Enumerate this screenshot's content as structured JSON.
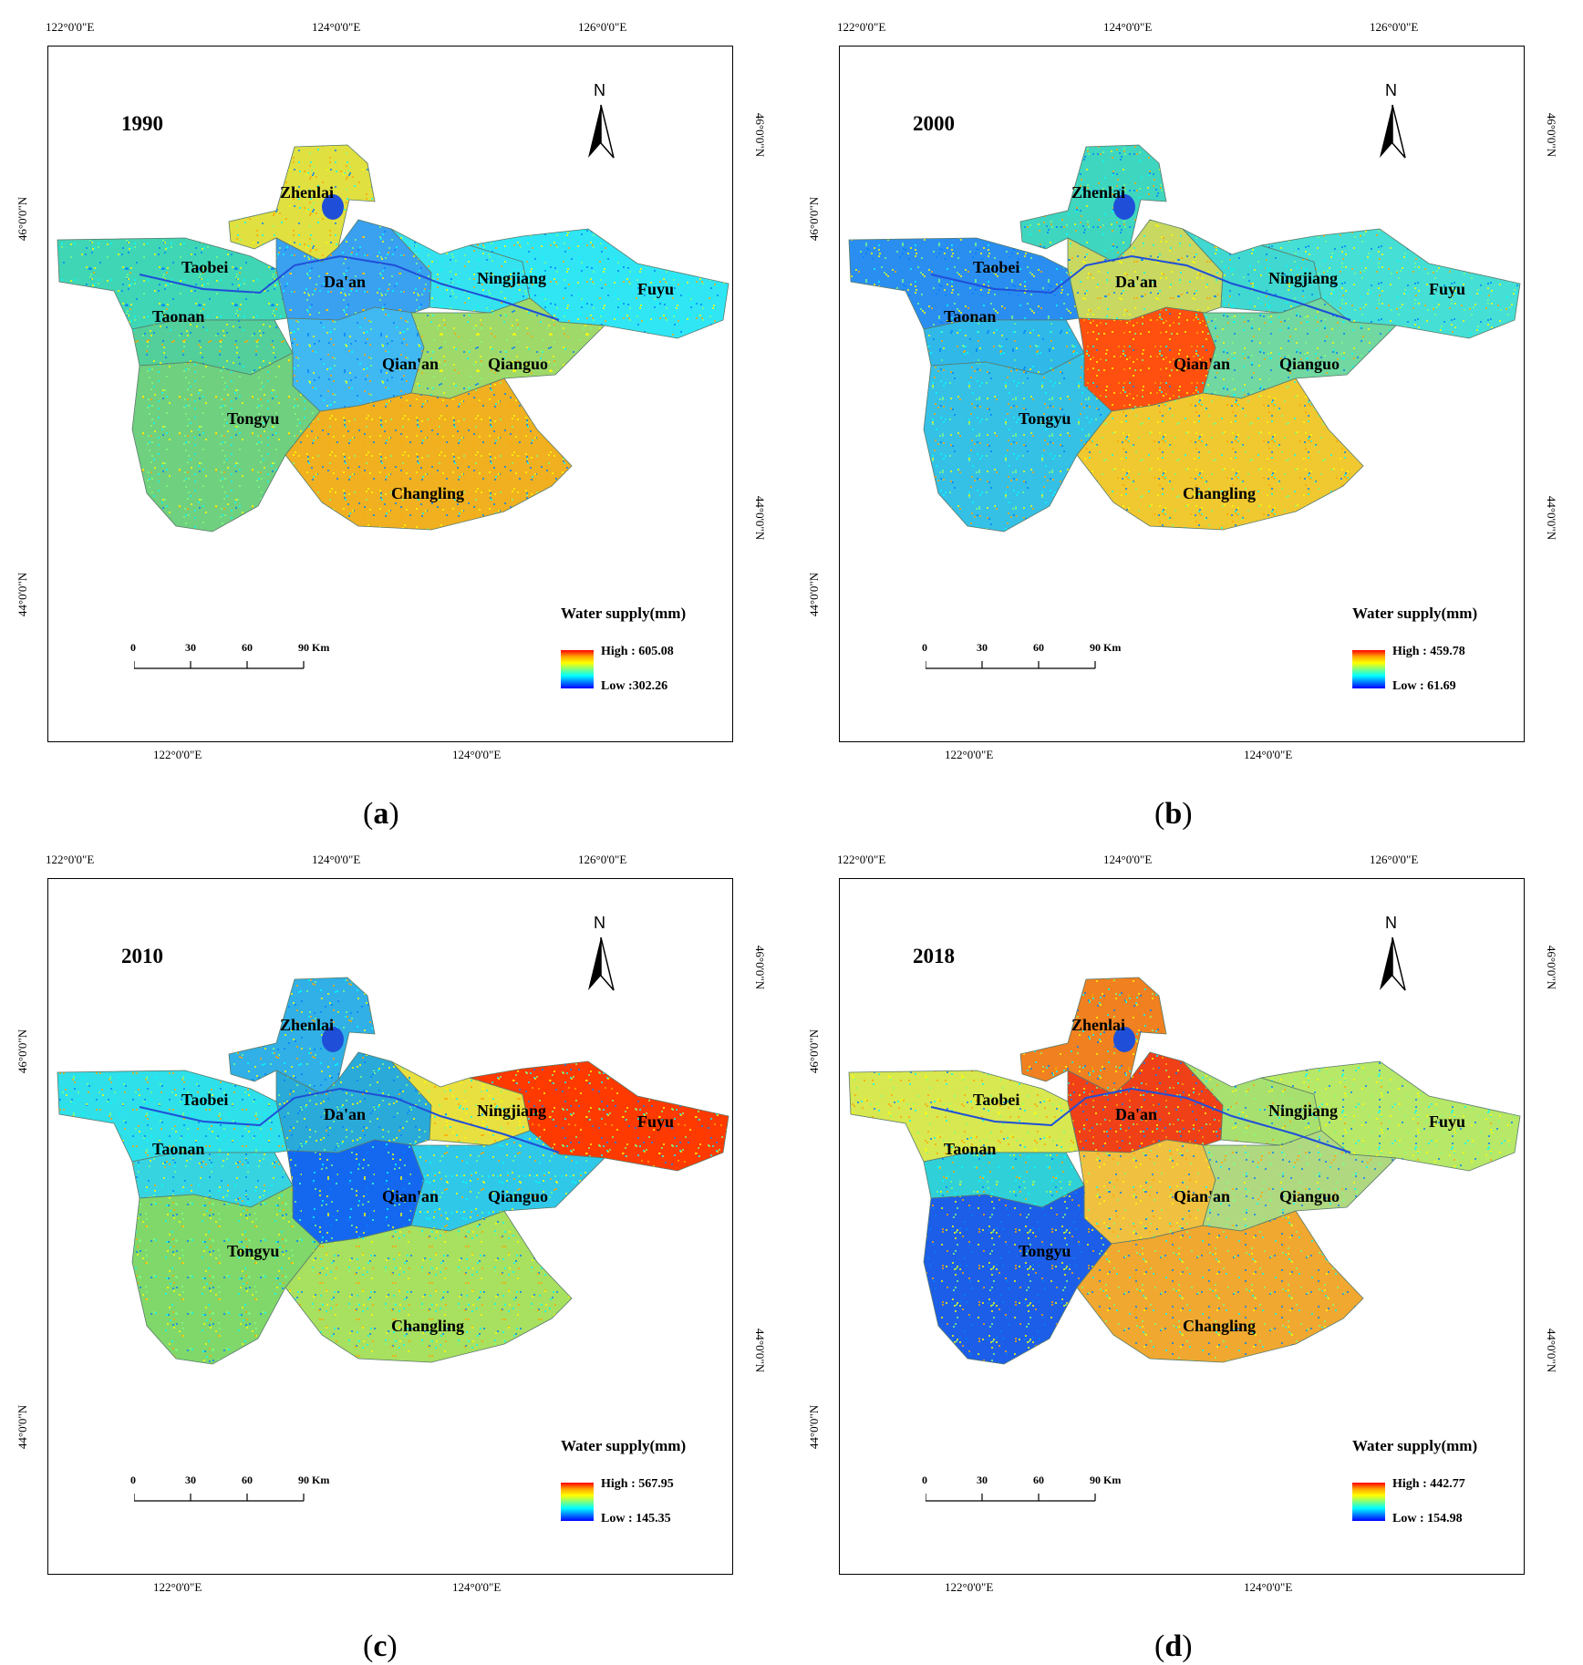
{
  "axis_labels": {
    "top": [
      "122°0'0\"E",
      "124°0'0\"E",
      "126°0'0\"E"
    ],
    "bottom": [
      "122°0'0\"E",
      "124°0'0\"E"
    ],
    "left": [
      "46°0'0\"N",
      "44°0'0\"N"
    ],
    "right": [
      "46°0'0\"N",
      "44°0'0\"N"
    ]
  },
  "north_label": "N",
  "scale": {
    "ticks": [
      "0",
      "30",
      "60",
      "90 Km"
    ]
  },
  "legend_title": "Water supply(mm)",
  "counties": [
    "Zhenlai",
    "Taobei",
    "Da'an",
    "Ningjiang",
    "Fuyu",
    "Taonan",
    "Qian'an",
    "Qianguo",
    "Tongyu",
    "Changling"
  ],
  "panels": [
    {
      "year": "1990",
      "caption_letter": "a",
      "legend": {
        "high": "High : 605.08",
        "low": "Low :302.26"
      },
      "county_colors": {
        "Zhenlai": "#e0e040",
        "Taobei": "#3fd6b5",
        "Da'an": "#3aa0f0",
        "Ningjiang": "#35e3f0",
        "Fuyu": "#30e6f5",
        "Taonan": "#52cf9a",
        "Qian'an": "#40b8f2",
        "Qianguo": "#9fd96a",
        "Tongyu": "#6fd07f",
        "Changling": "#f0b020"
      }
    },
    {
      "year": "2000",
      "caption_letter": "b",
      "legend": {
        "high": "High : 459.78",
        "low": "Low : 61.69"
      },
      "county_colors": {
        "Zhenlai": "#3fd6c0",
        "Taobei": "#2a8ef0",
        "Da'an": "#c8d860",
        "Ningjiang": "#40d8d0",
        "Fuyu": "#45dfd5",
        "Taonan": "#30b8e8",
        "Qian'an": "#ff5010",
        "Qianguo": "#70d8a0",
        "Tongyu": "#35c0e6",
        "Changling": "#f0c830"
      }
    },
    {
      "year": "2010",
      "caption_letter": "c",
      "legend": {
        "high": "High : 567.95",
        "low": "Low : 145.35"
      },
      "county_colors": {
        "Zhenlai": "#30b0e6",
        "Taobei": "#2ee0ea",
        "Da'an": "#2aaad8",
        "Ningjiang": "#e8e040",
        "Fuyu": "#ff3a00",
        "Taonan": "#36d4e0",
        "Qian'an": "#1468f0",
        "Qianguo": "#30c8e8",
        "Tongyu": "#80d86a",
        "Changling": "#a8e060"
      }
    },
    {
      "year": "2018",
      "caption_letter": "d",
      "legend": {
        "high": "High : 442.77",
        "low": "Low : 154.98"
      },
      "county_colors": {
        "Zhenlai": "#f08020",
        "Taobei": "#d8e850",
        "Da'an": "#f04018",
        "Ningjiang": "#a8e070",
        "Fuyu": "#b8e868",
        "Taonan": "#30d0d8",
        "Qian'an": "#f0c040",
        "Qianguo": "#b0d880",
        "Tongyu": "#1c5ee8",
        "Changling": "#f0a830"
      }
    }
  ]
}
